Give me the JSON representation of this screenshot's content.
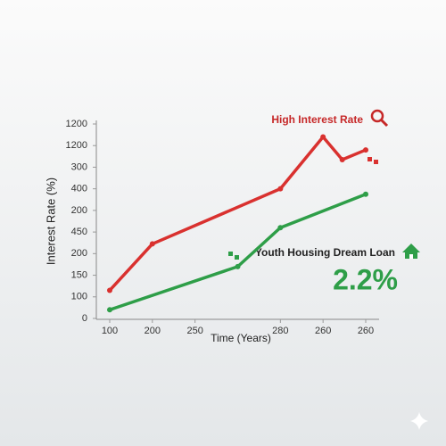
{
  "chart_data": {
    "type": "line",
    "y_label": "Interest Rate (%)",
    "x_label": "Time (Years)",
    "annotations": [
      "High Interest Rate",
      "Youth Housing Dream Loan",
      "2.2%"
    ],
    "xlim": [
      0,
      6
    ],
    "xticks": [
      {
        "value": 0,
        "label": "100"
      },
      {
        "value": 1,
        "label": "200"
      },
      {
        "value": 2,
        "label": "250"
      },
      {
        "value": 4,
        "label": "280"
      },
      {
        "value": 5,
        "label": "260"
      },
      {
        "value": 6,
        "label": "260"
      }
    ],
    "ylim": [
      0,
      9
    ],
    "yticks": [
      {
        "value": 0,
        "label": "0"
      },
      {
        "value": 1,
        "label": "100"
      },
      {
        "value": 2,
        "label": "150"
      },
      {
        "value": 3,
        "label": "200"
      },
      {
        "value": 4,
        "label": "450"
      },
      {
        "value": 5,
        "label": "200"
      },
      {
        "value": 6,
        "label": "400"
      },
      {
        "value": 7,
        "label": "300"
      },
      {
        "value": 8,
        "label": "1200"
      },
      {
        "value": 9,
        "label": "1200"
      }
    ],
    "series": [
      {
        "color": "#d9312f",
        "x": [
          0,
          1,
          4,
          5,
          5.45,
          6
        ],
        "values": [
          1.3,
          3.45,
          6,
          8.4,
          7.35,
          7.8
        ]
      },
      {
        "color": "#2e9e48",
        "x": [
          0,
          3,
          4,
          6
        ],
        "values": [
          0.4,
          2.4,
          4.2,
          5.75
        ]
      }
    ]
  }
}
